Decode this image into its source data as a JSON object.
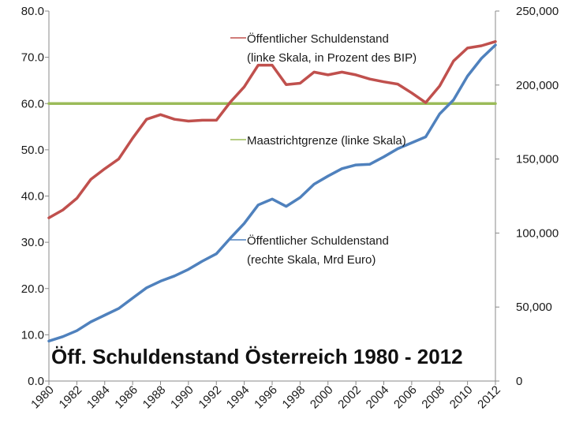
{
  "chart_data": {
    "type": "line",
    "title": "Öff. Schuldenstand Österreich 1980 - 2012",
    "x": [
      1980,
      1981,
      1982,
      1983,
      1984,
      1985,
      1986,
      1987,
      1988,
      1989,
      1990,
      1991,
      1992,
      1993,
      1994,
      1995,
      1996,
      1997,
      1998,
      1999,
      2000,
      2001,
      2002,
      2003,
      2004,
      2005,
      2006,
      2007,
      2008,
      2009,
      2010,
      2011,
      2012
    ],
    "x_tick_labels": [
      "1980",
      "1982",
      "1984",
      "1986",
      "1988",
      "1990",
      "1992",
      "1994",
      "1996",
      "1998",
      "2000",
      "2002",
      "2004",
      "2006",
      "2008",
      "2010",
      "2012"
    ],
    "left_axis": {
      "ylim": [
        0,
        80
      ],
      "ticks": [
        "0.0",
        "10.0",
        "20.0",
        "30.0",
        "40.0",
        "50.0",
        "60.0",
        "70.0",
        "80.0"
      ]
    },
    "right_axis": {
      "ylim": [
        0,
        250000
      ],
      "ticks": [
        "0",
        "50,000",
        "100,000",
        "150,000",
        "200,000",
        "250,000"
      ]
    },
    "series": [
      {
        "name": "Öffentlicher Schuldenstand (linke Skala, in Prozent des BIP)",
        "legend_lines": [
          "Öffentlicher Schuldenstand",
          "(linke Skala, in Prozent des BIP)"
        ],
        "axis": "left",
        "color": "#c0504d",
        "values": [
          35.3,
          37.0,
          39.5,
          43.6,
          45.9,
          48.0,
          52.5,
          56.6,
          57.6,
          56.6,
          56.2,
          56.4,
          56.4,
          60.3,
          63.6,
          68.3,
          68.3,
          64.1,
          64.4,
          66.8,
          66.2,
          66.8,
          66.2,
          65.3,
          64.7,
          64.2,
          62.3,
          60.2,
          63.8,
          69.2,
          72.0,
          72.5,
          73.4
        ]
      },
      {
        "name": "Maastrichtgrenze (linke Skala)",
        "legend_lines": [
          "Maastrichtgrenze (linke Skala)"
        ],
        "axis": "left",
        "color": "#9bbb59",
        "values": [
          60,
          60,
          60,
          60,
          60,
          60,
          60,
          60,
          60,
          60,
          60,
          60,
          60,
          60,
          60,
          60,
          60,
          60,
          60,
          60,
          60,
          60,
          60,
          60,
          60,
          60,
          60,
          60,
          60,
          60,
          60,
          60,
          60
        ]
      },
      {
        "name": "Öffentlicher Schuldenstand (rechte Skala, Mrd Euro)",
        "legend_lines": [
          "Öffentlicher Schuldenstand",
          "(rechte Skala, Mrd Euro)"
        ],
        "axis": "right",
        "color": "#4f81bd",
        "values": [
          27000,
          30000,
          34000,
          40000,
          44500,
          49000,
          56000,
          63000,
          67500,
          71000,
          75500,
          81000,
          86000,
          96500,
          106500,
          119000,
          123000,
          118000,
          124000,
          133000,
          138500,
          143500,
          146000,
          146500,
          151500,
          157000,
          161000,
          165000,
          180500,
          190000,
          206000,
          218000,
          227000
        ]
      }
    ]
  }
}
